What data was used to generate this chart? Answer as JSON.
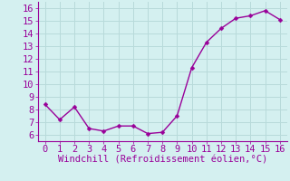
{
  "x": [
    0,
    1,
    2,
    3,
    4,
    5,
    6,
    7,
    8,
    9,
    10,
    11,
    12,
    13,
    14,
    15,
    16
  ],
  "y": [
    8.4,
    7.2,
    8.2,
    6.5,
    6.3,
    6.7,
    6.7,
    6.1,
    6.2,
    7.5,
    11.3,
    13.3,
    14.4,
    15.2,
    15.4,
    15.8,
    15.1
  ],
  "line_color": "#990099",
  "marker": "D",
  "marker_size": 2.5,
  "line_width": 1.0,
  "bg_color": "#d4f0f0",
  "grid_color": "#b8dada",
  "xlabel": "Windchill (Refroidissement éolien,°C)",
  "xlabel_color": "#990099",
  "xlabel_fontsize": 7.5,
  "tick_color": "#990099",
  "tick_labelsize": 7.5,
  "xlim": [
    -0.5,
    16.5
  ],
  "ylim": [
    5.5,
    16.5
  ],
  "yticks": [
    6,
    7,
    8,
    9,
    10,
    11,
    12,
    13,
    14,
    15,
    16
  ],
  "xticks": [
    0,
    1,
    2,
    3,
    4,
    5,
    6,
    7,
    8,
    9,
    10,
    11,
    12,
    13,
    14,
    15,
    16
  ]
}
